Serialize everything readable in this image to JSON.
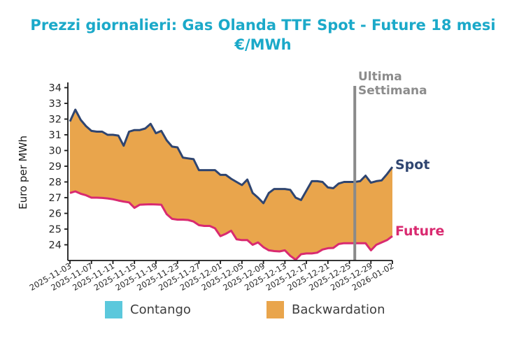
{
  "title": {
    "line1": "Prezzi giornalieri: Gas Olanda TTF Spot - Future 18 mesi",
    "line2": "€/MWh"
  },
  "colors": {
    "title": "#1ba9c9",
    "spot_line": "#2f4570",
    "future_line": "#d92a70",
    "backwardation_fill": "#e9a54c",
    "contango_fill": "#5bc8dc",
    "vline": "#8a8a8a",
    "vline_label": "#8c8c8c",
    "axis": "#1a1a1a",
    "tick_text": "#262626"
  },
  "annotations": {
    "vline_label_line1": "Ultima",
    "vline_label_line2": "Settimana",
    "spot_label": "Spot",
    "future_label": "Future"
  },
  "legend": [
    {
      "label": "Contango",
      "color": "#5bc8dc"
    },
    {
      "label": "Backwardation",
      "color": "#e9a54c"
    }
  ],
  "chart_data": {
    "type": "area",
    "title": "Prezzi giornalieri: Gas Olanda TTF Spot - Future 18 mesi €/MWh",
    "ylabel": "Euro per MWh",
    "ylim": [
      23,
      34.2
    ],
    "y_ticks": [
      24,
      25,
      26,
      27,
      28,
      29,
      30,
      31,
      32,
      33,
      34
    ],
    "grid": false,
    "legend_position": "bottom",
    "x": [
      "2025-11-03",
      "2025-11-04",
      "2025-11-05",
      "2025-11-06",
      "2025-11-07",
      "2025-11-08",
      "2025-11-09",
      "2025-11-10",
      "2025-11-11",
      "2025-11-12",
      "2025-11-13",
      "2025-11-14",
      "2025-11-15",
      "2025-11-16",
      "2025-11-17",
      "2025-11-18",
      "2025-11-19",
      "2025-11-20",
      "2025-11-21",
      "2025-11-22",
      "2025-11-23",
      "2025-11-24",
      "2025-11-25",
      "2025-11-26",
      "2025-11-27",
      "2025-11-28",
      "2025-11-29",
      "2025-11-30",
      "2025-12-01",
      "2025-12-02",
      "2025-12-03",
      "2025-12-04",
      "2025-12-05",
      "2025-12-06",
      "2025-12-07",
      "2025-12-08",
      "2025-12-09",
      "2025-12-10",
      "2025-12-11",
      "2025-12-12",
      "2025-12-13",
      "2025-12-14",
      "2025-12-15",
      "2025-12-16",
      "2025-12-17",
      "2025-12-18",
      "2025-12-19",
      "2025-12-20",
      "2025-12-21",
      "2025-12-22",
      "2025-12-23",
      "2025-12-24",
      "2025-12-25",
      "2025-12-26",
      "2025-12-27",
      "2025-12-28",
      "2025-12-29",
      "2025-12-30",
      "2025-12-31",
      "2026-01-01",
      "2026-01-02"
    ],
    "x_tick_labels": [
      "2025-11-03",
      "2025-11-07",
      "2025-11-11",
      "2025-11-15",
      "2025-11-19",
      "2025-11-23",
      "2025-11-27",
      "2025-12-01",
      "2025-12-05",
      "2025-12-09",
      "2025-12-13",
      "2025-12-17",
      "2025-12-21",
      "2025-12-25",
      "2025-12-29",
      "2026-01-02"
    ],
    "series": [
      {
        "name": "Spot",
        "color": "#2f4570",
        "values": [
          31.85,
          32.6,
          31.95,
          31.55,
          31.25,
          31.2,
          31.2,
          31.0,
          31.0,
          30.95,
          30.3,
          31.2,
          31.3,
          31.3,
          31.4,
          31.7,
          31.1,
          31.25,
          30.65,
          30.25,
          30.2,
          29.55,
          29.5,
          29.45,
          28.75,
          28.75,
          28.75,
          28.75,
          28.45,
          28.45,
          28.2,
          28.0,
          27.8,
          28.15,
          27.3,
          27.0,
          26.65,
          27.3,
          27.55,
          27.55,
          27.55,
          27.5,
          27.0,
          26.85,
          27.45,
          28.05,
          28.05,
          28.0,
          27.65,
          27.6,
          27.9,
          28.0,
          28.0,
          28.0,
          28.05,
          28.4,
          27.95,
          28.05,
          28.1,
          28.5,
          28.95
        ]
      },
      {
        "name": "Future",
        "color": "#d92a70",
        "values": [
          27.3,
          27.4,
          27.25,
          27.15,
          27.0,
          27.0,
          26.98,
          26.95,
          26.9,
          26.82,
          26.75,
          26.7,
          26.35,
          26.55,
          26.57,
          26.58,
          26.57,
          26.55,
          25.95,
          25.65,
          25.6,
          25.6,
          25.58,
          25.48,
          25.25,
          25.2,
          25.2,
          25.05,
          24.55,
          24.7,
          24.9,
          24.35,
          24.3,
          24.3,
          24.0,
          24.15,
          23.85,
          23.65,
          23.6,
          23.58,
          23.65,
          23.3,
          23.05,
          23.4,
          23.45,
          23.45,
          23.5,
          23.7,
          23.78,
          23.8,
          24.05,
          24.1,
          24.1,
          24.1,
          24.1,
          24.1,
          23.65,
          24.0,
          24.15,
          24.3,
          24.55
        ]
      }
    ],
    "fill_between": {
      "label": "Backwardation",
      "color": "#e9a54c",
      "rule": "where Spot > Future"
    },
    "contango_fill": {
      "label": "Contango",
      "color": "#5bc8dc",
      "rule": "where Future > Spot (not present in range)"
    },
    "vline": {
      "x": "2025-12-26",
      "label": "Ultima Settimana",
      "color": "#8a8a8a"
    }
  }
}
